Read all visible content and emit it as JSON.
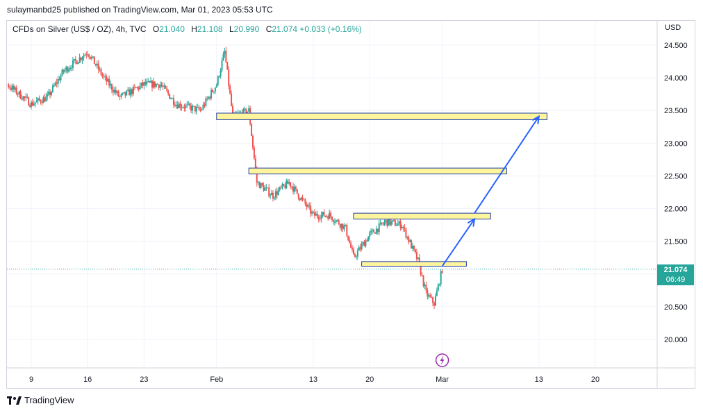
{
  "header": {
    "publisher_text": "sulaymanbd25 published on TradingView.com, Mar 01, 2023 05:53 UTC"
  },
  "legend": {
    "symbol": "CFDs on Silver (US$ / OZ), 4h, TVC",
    "open_label": "O",
    "open": "21.040",
    "high_label": "H",
    "high": "21.108",
    "low_label": "L",
    "low": "20.990",
    "close_label": "C",
    "close": "21.074",
    "change": "+0.033 (+0.16%)"
  },
  "price_axis": {
    "currency": "USD",
    "tick_labels": [
      "24.500",
      "24.000",
      "23.500",
      "23.000",
      "22.500",
      "22.000",
      "21.500",
      "21.000",
      "20.500",
      "20.000"
    ]
  },
  "time_axis": {
    "tick_labels": [
      "9",
      "16",
      "23",
      "Feb",
      "13",
      "20",
      "Mar",
      "13",
      "20"
    ]
  },
  "last_price": {
    "value": "21.074",
    "countdown": "06:49"
  },
  "footer": {
    "brand": "TradingView"
  },
  "colors": {
    "up": "#26a69a",
    "down": "#ef5350",
    "zone_fill": "#fff59d",
    "zone_border": "#1e3fa8",
    "arrow": "#2962ff",
    "last_price_line": "#26a69a",
    "grid": "#f0f3fa"
  },
  "chart_data": {
    "type": "candlestick",
    "symbol": "CFDs on Silver (US$ / OZ)",
    "timeframe": "4h",
    "ylim": [
      19.5,
      24.75
    ],
    "price_ticks": [
      20.0,
      20.5,
      21.0,
      21.5,
      22.0,
      22.5,
      23.0,
      23.5,
      24.0,
      24.5
    ],
    "date_ticks": [
      "2023-01-09",
      "2023-01-16",
      "2023-01-23",
      "2023-02-01",
      "2023-02-13",
      "2023-02-20",
      "2023-03-01",
      "2023-03-13",
      "2023-03-20"
    ],
    "date_tick_labels": [
      "9",
      "16",
      "23",
      "Feb",
      "13",
      "20",
      "Mar",
      "13",
      "20"
    ],
    "close_path": [
      {
        "date": "2023-01-03",
        "close": 23.8
      },
      {
        "date": "2023-01-04",
        "close": 23.2
      },
      {
        "date": "2023-01-06",
        "close": 23.9
      },
      {
        "date": "2023-01-09",
        "close": 23.6
      },
      {
        "date": "2023-01-11",
        "close": 23.7
      },
      {
        "date": "2023-01-13",
        "close": 24.1
      },
      {
        "date": "2023-01-16",
        "close": 24.4
      },
      {
        "date": "2023-01-18",
        "close": 24.0
      },
      {
        "date": "2023-01-20",
        "close": 23.7
      },
      {
        "date": "2023-01-23",
        "close": 23.9
      },
      {
        "date": "2023-01-25",
        "close": 23.9
      },
      {
        "date": "2023-01-27",
        "close": 23.6
      },
      {
        "date": "2023-01-30",
        "close": 23.5
      },
      {
        "date": "2023-02-01",
        "close": 23.9
      },
      {
        "date": "2023-02-02",
        "close": 24.4
      },
      {
        "date": "2023-02-03",
        "close": 23.4
      },
      {
        "date": "2023-02-05",
        "close": 23.5
      },
      {
        "date": "2023-02-06",
        "close": 22.4
      },
      {
        "date": "2023-02-08",
        "close": 22.2
      },
      {
        "date": "2023-02-10",
        "close": 22.4
      },
      {
        "date": "2023-02-13",
        "close": 21.9
      },
      {
        "date": "2023-02-15",
        "close": 21.9
      },
      {
        "date": "2023-02-17",
        "close": 21.7
      },
      {
        "date": "2023-02-18",
        "close": 21.25
      },
      {
        "date": "2023-02-20",
        "close": 21.6
      },
      {
        "date": "2023-02-22",
        "close": 21.8
      },
      {
        "date": "2023-02-24",
        "close": 21.75
      },
      {
        "date": "2023-02-26",
        "close": 21.2
      },
      {
        "date": "2023-02-27",
        "close": 20.7
      },
      {
        "date": "2023-02-28",
        "close": 20.55
      },
      {
        "date": "2023-03-01",
        "close": 21.074
      }
    ],
    "zones": [
      {
        "start": "2023-02-01",
        "end": "2023-03-14",
        "low": 23.36,
        "high": 23.46
      },
      {
        "start": "2023-02-05",
        "end": "2023-03-09",
        "low": 22.53,
        "high": 22.62
      },
      {
        "start": "2023-02-18",
        "end": "2023-03-07",
        "low": 21.84,
        "high": 21.93
      },
      {
        "start": "2023-02-19",
        "end": "2023-03-04",
        "low": 21.12,
        "high": 21.19
      }
    ],
    "projection": [
      {
        "date": "2023-03-01",
        "price": 21.12
      },
      {
        "date": "2023-03-05",
        "price": 21.84
      },
      {
        "date": "2023-03-05",
        "price": 21.93
      },
      {
        "date": "2023-03-13",
        "price": 23.41
      }
    ],
    "last_close": 21.074
  }
}
